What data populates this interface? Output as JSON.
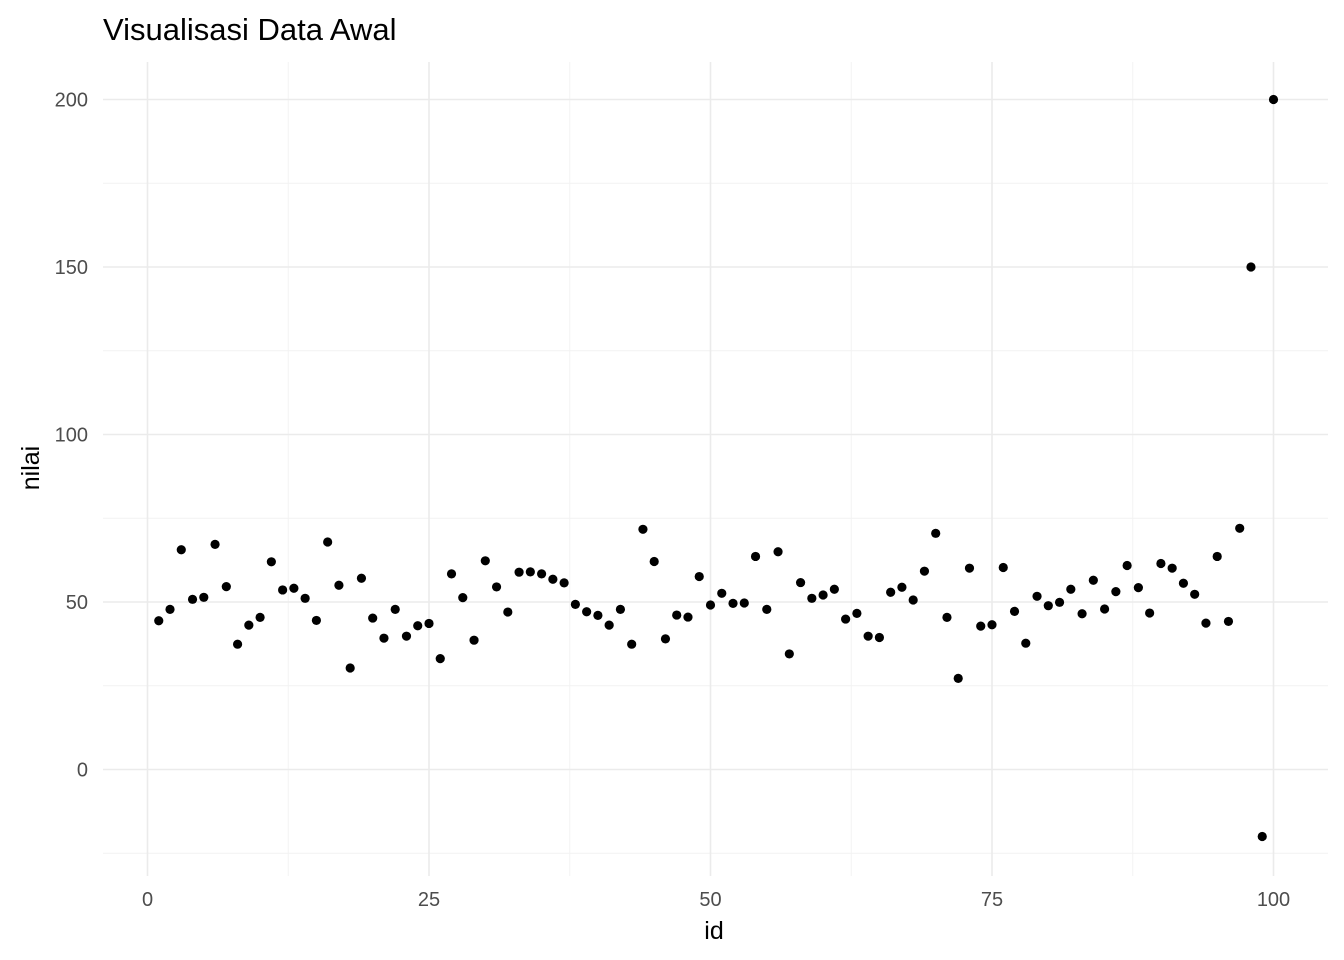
{
  "chart_data": {
    "type": "scatter",
    "title": "Visualisasi Data Awal",
    "xlabel": "id",
    "ylabel": "nilai",
    "xlim": [
      -3,
      103
    ],
    "ylim": [
      -25,
      210
    ],
    "x_ticks": [
      0,
      25,
      50,
      75,
      100
    ],
    "y_ticks": [
      0,
      50,
      100,
      150,
      200
    ],
    "x_tick_labels": [
      "0",
      "25",
      "50",
      "75",
      "100"
    ],
    "y_tick_labels": [
      "0",
      "50",
      "100",
      "150",
      "200"
    ],
    "grid": true,
    "point_color": "#000000",
    "series": [
      {
        "x": [
          1,
          2,
          3,
          4,
          5,
          6,
          7,
          8,
          9,
          10,
          11,
          12,
          13,
          14,
          15,
          16,
          17,
          18,
          19,
          20,
          21,
          22,
          23,
          24,
          25,
          26,
          27,
          28,
          29,
          30,
          31,
          32,
          33,
          34,
          35,
          36,
          37,
          38,
          39,
          40,
          41,
          42,
          43,
          44,
          45,
          46,
          47,
          48,
          49,
          50,
          51,
          52,
          53,
          54,
          55,
          56,
          57,
          58,
          59,
          60,
          61,
          62,
          63,
          64,
          65,
          66,
          67,
          68,
          69,
          70,
          71,
          72,
          73,
          74,
          75,
          76,
          77,
          78,
          79,
          80,
          81,
          82,
          83,
          84,
          85,
          86,
          87,
          88,
          89,
          90,
          91,
          92,
          93,
          94,
          95,
          96,
          97,
          98,
          99,
          100
        ],
        "values": [
          44.4,
          47.8,
          65.6,
          50.8,
          51.4,
          67.2,
          54.6,
          37.4,
          43.1,
          45.4,
          62.0,
          53.6,
          54.1,
          51.1,
          44.5,
          67.9,
          55.0,
          30.3,
          57.1,
          45.2,
          39.2,
          47.8,
          39.8,
          42.9,
          43.6,
          33.1,
          58.4,
          51.3,
          38.6,
          62.3,
          54.5,
          47.0,
          58.9,
          59.0,
          58.4,
          56.8,
          55.7,
          49.3,
          47.1,
          46.0,
          43.1,
          47.8,
          37.4,
          71.7,
          62.1,
          39.0,
          46.1,
          45.5,
          57.6,
          49.1,
          52.6,
          49.6,
          49.7,
          63.6,
          47.8,
          65.0,
          34.5,
          55.8,
          51.1,
          52.1,
          53.8,
          44.9,
          46.6,
          39.8,
          39.4,
          52.9,
          54.4,
          50.6,
          59.2,
          70.5,
          45.4,
          27.2,
          60.1,
          42.8,
          43.2,
          60.3,
          47.2,
          37.7,
          51.7,
          48.9,
          49.9,
          53.8,
          46.5,
          56.5,
          47.9,
          53.1,
          60.9,
          54.3,
          46.7,
          61.5,
          60.1,
          55.6,
          52.3,
          43.7,
          63.6,
          44.2,
          72.0,
          150.0,
          -20.0,
          200.0
        ]
      }
    ]
  }
}
